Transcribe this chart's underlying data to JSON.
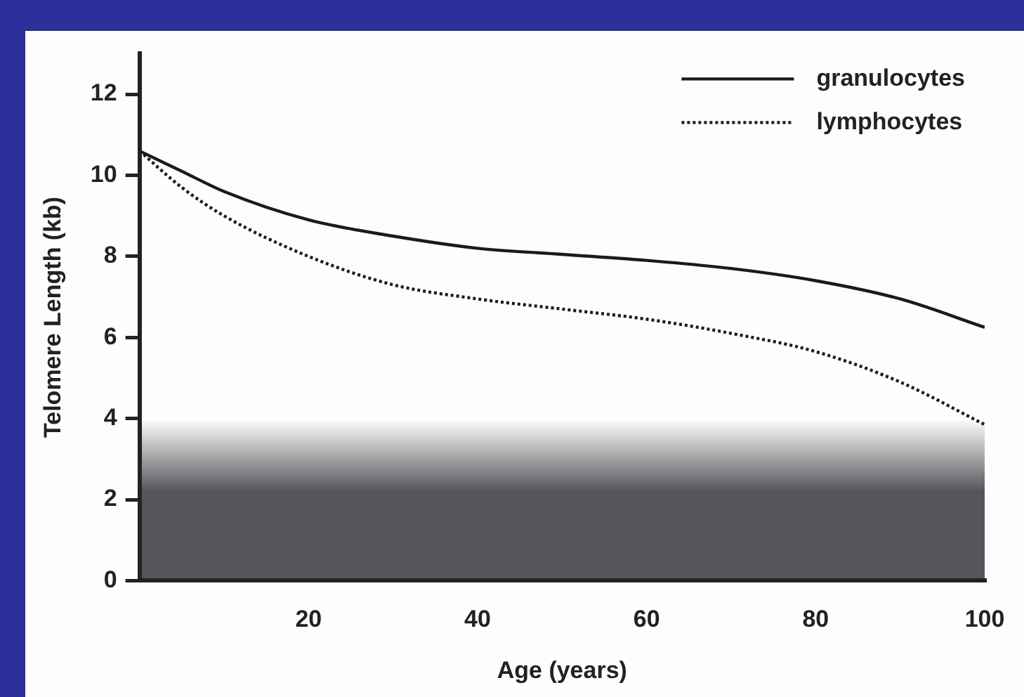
{
  "chart_data": {
    "type": "line",
    "xlabel": "Age (years)",
    "ylabel": "Telomere Length (kb)",
    "x": [
      0,
      5,
      10,
      20,
      30,
      40,
      50,
      60,
      70,
      80,
      90,
      100
    ],
    "series": [
      {
        "name": "granulocytes",
        "color": "#1a1a1a",
        "line_style": "solid",
        "values": [
          10.6,
          10.1,
          9.6,
          8.9,
          8.5,
          8.2,
          8.05,
          7.9,
          7.7,
          7.4,
          6.95,
          6.25
        ]
      },
      {
        "name": "lymphocytes",
        "color": "#1a1a1a",
        "line_style": "dotted",
        "values": [
          10.6,
          9.7,
          9.0,
          8.0,
          7.3,
          6.95,
          6.7,
          6.45,
          6.1,
          5.65,
          4.9,
          3.85
        ]
      }
    ],
    "xlim": [
      0,
      100
    ],
    "xticks": [
      20,
      40,
      60,
      80,
      100
    ],
    "ylim": [
      0,
      13
    ],
    "yticks": [
      0,
      2,
      4,
      6,
      8,
      10,
      12
    ],
    "bands": [
      {
        "axis": "y",
        "from": 0,
        "to": 4,
        "color": "#55565b"
      }
    ],
    "grid": false,
    "legend": "top right",
    "marker": "none"
  }
}
